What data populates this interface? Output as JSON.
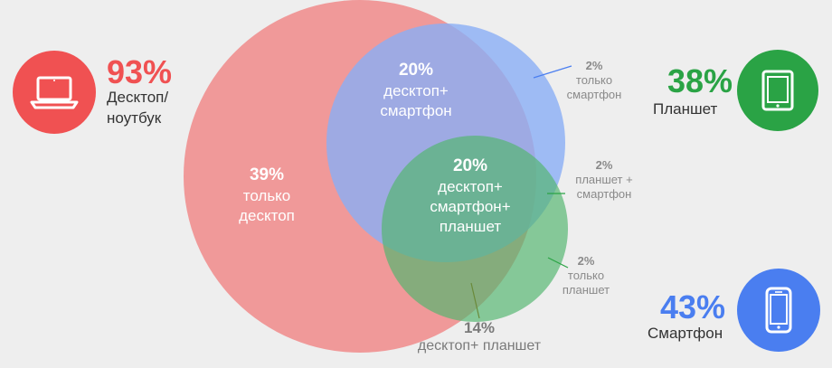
{
  "desktop": {
    "percent": "93%",
    "label_line1": "Десктоп/",
    "label_line2": "ноутбук",
    "color": "#f05152",
    "icon": "laptop-icon"
  },
  "tablet": {
    "percent": "38%",
    "label": "Планшет",
    "color": "#2aa345",
    "icon": "tablet-icon"
  },
  "smartphone": {
    "percent": "43%",
    "label": "Смартфон",
    "color": "#4a7ef0",
    "icon": "smartphone-icon"
  },
  "regions": {
    "desktop_only": {
      "percent": "39%",
      "line1": "только",
      "line2": "десктоп"
    },
    "desktop_smartphone": {
      "percent": "20%",
      "line1": "десктоп+",
      "line2": "смартфон"
    },
    "all_three": {
      "percent": "20%",
      "line1": "десктоп+",
      "line2": "смартфон+",
      "line3": "планшет"
    },
    "smartphone_only": {
      "percent": "2%",
      "line1": "только",
      "line2": "смартфон"
    },
    "tablet_smartphone": {
      "percent": "2%",
      "line1": "планшет +",
      "line2": "смартфон"
    },
    "tablet_only": {
      "percent": "2%",
      "line1": "только",
      "line2": "планшет"
    },
    "desktop_tablet": {
      "percent": "14%",
      "label": "десктоп+ планшет"
    }
  },
  "circle_colors": {
    "desktop": "#f08a8a",
    "smartphone": "#8aaef5",
    "tablet": "#52b56e"
  }
}
